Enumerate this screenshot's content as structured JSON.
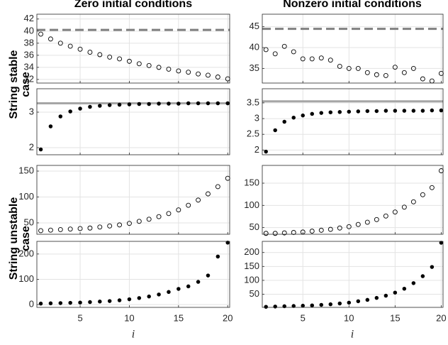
{
  "column_titles": [
    "Zero initial conditions",
    "Nonzero initial conditions"
  ],
  "row_labels": [
    [
      "String stable",
      "case"
    ],
    [
      "String unstable",
      "case"
    ]
  ],
  "xlabel": "i",
  "chart_data": [
    {
      "type": "scatter",
      "marker": "open",
      "color": "#000000",
      "x": [
        1,
        2,
        3,
        4,
        5,
        6,
        7,
        8,
        9,
        10,
        11,
        12,
        13,
        14,
        15,
        16,
        17,
        18,
        19,
        20
      ],
      "values": [
        39.5,
        38.7,
        38.0,
        37.5,
        37.0,
        36.5,
        36.1,
        35.7,
        35.4,
        35.0,
        34.6,
        34.3,
        34.0,
        33.7,
        33.4,
        33.2,
        32.9,
        32.7,
        32.4,
        32.1
      ],
      "hline": 40.2,
      "hline_style": "dashed",
      "hline_color": "#808080",
      "xlim": [
        0.6,
        20.2
      ],
      "xticks": [
        5,
        10,
        15,
        20
      ],
      "ylim": [
        31.4,
        42.8
      ],
      "yticks": [
        32,
        34,
        36,
        38,
        40,
        42
      ],
      "grid": true
    },
    {
      "type": "scatter",
      "marker": "filled",
      "color": "#000000",
      "x": [
        1,
        2,
        3,
        4,
        5,
        6,
        7,
        8,
        9,
        10,
        11,
        12,
        13,
        14,
        15,
        16,
        17,
        18,
        19,
        20
      ],
      "values": [
        1.95,
        2.6,
        2.88,
        3.02,
        3.1,
        3.15,
        3.18,
        3.2,
        3.21,
        3.22,
        3.23,
        3.23,
        3.24,
        3.24,
        3.24,
        3.25,
        3.25,
        3.25,
        3.25,
        3.25
      ],
      "hline": 3.25,
      "hline_style": "solid",
      "hline_color": "#a6a6a6",
      "xlim": [
        0.6,
        20.2
      ],
      "xticks": [
        5,
        10,
        15,
        20
      ],
      "ylim": [
        1.8,
        3.66
      ],
      "yticks": [
        2,
        3
      ],
      "grid": true
    },
    {
      "type": "scatter",
      "marker": "open",
      "color": "#000000",
      "x": [
        1,
        2,
        3,
        4,
        5,
        6,
        7,
        8,
        9,
        10,
        11,
        12,
        13,
        14,
        15,
        16,
        17,
        18,
        19,
        20
      ],
      "values": [
        35,
        36,
        37,
        38,
        39,
        40,
        42,
        44,
        46,
        49,
        53,
        57,
        62,
        68,
        75,
        84,
        94,
        106,
        120,
        136
      ],
      "xlim": [
        0.6,
        20.2
      ],
      "xticks": [
        5,
        10,
        15,
        20
      ],
      "ylim": [
        28,
        161
      ],
      "yticks": [
        50,
        100,
        150
      ],
      "grid": true
    },
    {
      "type": "scatter",
      "marker": "filled",
      "color": "#000000",
      "x": [
        1,
        2,
        3,
        4,
        5,
        6,
        7,
        8,
        9,
        10,
        11,
        12,
        13,
        14,
        15,
        16,
        17,
        18,
        19,
        20
      ],
      "values": [
        4,
        5,
        6,
        7,
        8,
        10,
        12,
        14,
        17,
        21,
        26,
        32,
        40,
        50,
        62,
        72,
        90,
        115,
        190,
        245
      ],
      "xlim": [
        0.6,
        20.2
      ],
      "xticks": [
        5,
        10,
        15,
        20
      ],
      "ylim": [
        -11,
        250
      ],
      "yticks": [
        0,
        100,
        200
      ],
      "grid": true
    },
    {
      "type": "scatter",
      "marker": "open",
      "color": "#000000",
      "x": [
        1,
        2,
        3,
        4,
        5,
        6,
        7,
        8,
        9,
        10,
        11,
        12,
        13,
        14,
        15,
        16,
        17,
        18,
        19,
        20
      ],
      "values": [
        39.5,
        38.5,
        40.3,
        39,
        37.3,
        37.3,
        37.5,
        37,
        35.5,
        35,
        35,
        34,
        33.5,
        33.3,
        35.3,
        34,
        35,
        32.5,
        32,
        33.8
      ],
      "hline": 44.5,
      "hline_style": "dashed",
      "hline_color": "#808080",
      "xlim": [
        0.6,
        20.2
      ],
      "xticks": [
        5,
        10,
        15,
        20
      ],
      "ylim": [
        31.5,
        48
      ],
      "yticks": [
        35,
        40,
        45
      ],
      "grid": true
    },
    {
      "type": "scatter",
      "marker": "filled",
      "color": "#000000",
      "x": [
        1,
        2,
        3,
        4,
        5,
        6,
        7,
        8,
        9,
        10,
        11,
        12,
        13,
        14,
        15,
        16,
        17,
        18,
        19,
        20
      ],
      "values": [
        1.95,
        2.63,
        2.9,
        3.03,
        3.1,
        3.15,
        3.18,
        3.2,
        3.21,
        3.22,
        3.23,
        3.24,
        3.24,
        3.25,
        3.25,
        3.25,
        3.25,
        3.25,
        3.26,
        3.26
      ],
      "hline": 3.55,
      "hline_style": "solid",
      "hline_color": "#a6a6a6",
      "xlim": [
        0.6,
        20.2
      ],
      "xticks": [
        5,
        10,
        15,
        20
      ],
      "ylim": [
        1.85,
        3.95
      ],
      "yticks": [
        2,
        2.5,
        3,
        3.5
      ],
      "grid": true
    },
    {
      "type": "scatter",
      "marker": "open",
      "color": "#000000",
      "x": [
        1,
        2,
        3,
        4,
        5,
        6,
        7,
        8,
        9,
        10,
        11,
        12,
        13,
        14,
        15,
        16,
        17,
        18,
        19,
        20
      ],
      "values": [
        37,
        37,
        38,
        39,
        40,
        42,
        44,
        46,
        49,
        52,
        57,
        62,
        68,
        76,
        85,
        96,
        108,
        124,
        140,
        178
      ],
      "xlim": [
        0.6,
        20.2
      ],
      "xticks": [
        5,
        10,
        15,
        20
      ],
      "ylim": [
        35,
        190
      ],
      "yticks": [
        50,
        100,
        150
      ],
      "grid": true
    },
    {
      "type": "scatter",
      "marker": "filled",
      "color": "#000000",
      "x": [
        1,
        2,
        3,
        4,
        5,
        6,
        7,
        8,
        9,
        10,
        11,
        12,
        13,
        14,
        15,
        16,
        17,
        18,
        19,
        20
      ],
      "values": [
        5,
        6,
        7,
        8,
        9,
        10,
        12,
        14,
        17,
        20,
        25,
        30,
        37,
        45,
        56,
        70,
        90,
        115,
        148,
        235
      ],
      "xlim": [
        0.6,
        20.2
      ],
      "xticks": [
        5,
        10,
        15,
        20
      ],
      "ylim": [
        3,
        240
      ],
      "yticks": [
        50,
        100,
        150,
        200
      ],
      "grid": true
    }
  ]
}
